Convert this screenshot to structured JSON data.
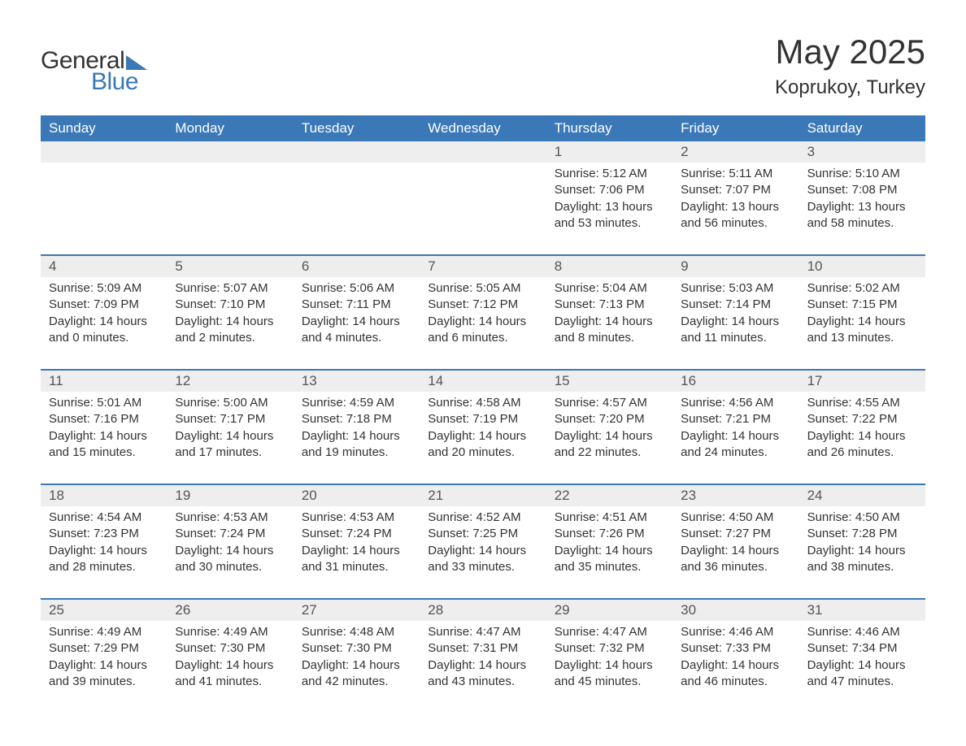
{
  "logo": {
    "general": "General",
    "blue": "Blue"
  },
  "title": "May 2025",
  "location": "Koprukoy, Turkey",
  "colors": {
    "header_bg": "#3b78b8",
    "header_text": "#ffffff",
    "daynum_bg": "#eeeeee",
    "body_text": "#333333",
    "accent": "#3b78b8"
  },
  "day_headers": [
    "Sunday",
    "Monday",
    "Tuesday",
    "Wednesday",
    "Thursday",
    "Friday",
    "Saturday"
  ],
  "weeks": [
    [
      null,
      null,
      null,
      null,
      {
        "n": "1",
        "sunrise": "5:12 AM",
        "sunset": "7:06 PM",
        "daylight": "13 hours and 53 minutes."
      },
      {
        "n": "2",
        "sunrise": "5:11 AM",
        "sunset": "7:07 PM",
        "daylight": "13 hours and 56 minutes."
      },
      {
        "n": "3",
        "sunrise": "5:10 AM",
        "sunset": "7:08 PM",
        "daylight": "13 hours and 58 minutes."
      }
    ],
    [
      {
        "n": "4",
        "sunrise": "5:09 AM",
        "sunset": "7:09 PM",
        "daylight": "14 hours and 0 minutes."
      },
      {
        "n": "5",
        "sunrise": "5:07 AM",
        "sunset": "7:10 PM",
        "daylight": "14 hours and 2 minutes."
      },
      {
        "n": "6",
        "sunrise": "5:06 AM",
        "sunset": "7:11 PM",
        "daylight": "14 hours and 4 minutes."
      },
      {
        "n": "7",
        "sunrise": "5:05 AM",
        "sunset": "7:12 PM",
        "daylight": "14 hours and 6 minutes."
      },
      {
        "n": "8",
        "sunrise": "5:04 AM",
        "sunset": "7:13 PM",
        "daylight": "14 hours and 8 minutes."
      },
      {
        "n": "9",
        "sunrise": "5:03 AM",
        "sunset": "7:14 PM",
        "daylight": "14 hours and 11 minutes."
      },
      {
        "n": "10",
        "sunrise": "5:02 AM",
        "sunset": "7:15 PM",
        "daylight": "14 hours and 13 minutes."
      }
    ],
    [
      {
        "n": "11",
        "sunrise": "5:01 AM",
        "sunset": "7:16 PM",
        "daylight": "14 hours and 15 minutes."
      },
      {
        "n": "12",
        "sunrise": "5:00 AM",
        "sunset": "7:17 PM",
        "daylight": "14 hours and 17 minutes."
      },
      {
        "n": "13",
        "sunrise": "4:59 AM",
        "sunset": "7:18 PM",
        "daylight": "14 hours and 19 minutes."
      },
      {
        "n": "14",
        "sunrise": "4:58 AM",
        "sunset": "7:19 PM",
        "daylight": "14 hours and 20 minutes."
      },
      {
        "n": "15",
        "sunrise": "4:57 AM",
        "sunset": "7:20 PM",
        "daylight": "14 hours and 22 minutes."
      },
      {
        "n": "16",
        "sunrise": "4:56 AM",
        "sunset": "7:21 PM",
        "daylight": "14 hours and 24 minutes."
      },
      {
        "n": "17",
        "sunrise": "4:55 AM",
        "sunset": "7:22 PM",
        "daylight": "14 hours and 26 minutes."
      }
    ],
    [
      {
        "n": "18",
        "sunrise": "4:54 AM",
        "sunset": "7:23 PM",
        "daylight": "14 hours and 28 minutes."
      },
      {
        "n": "19",
        "sunrise": "4:53 AM",
        "sunset": "7:24 PM",
        "daylight": "14 hours and 30 minutes."
      },
      {
        "n": "20",
        "sunrise": "4:53 AM",
        "sunset": "7:24 PM",
        "daylight": "14 hours and 31 minutes."
      },
      {
        "n": "21",
        "sunrise": "4:52 AM",
        "sunset": "7:25 PM",
        "daylight": "14 hours and 33 minutes."
      },
      {
        "n": "22",
        "sunrise": "4:51 AM",
        "sunset": "7:26 PM",
        "daylight": "14 hours and 35 minutes."
      },
      {
        "n": "23",
        "sunrise": "4:50 AM",
        "sunset": "7:27 PM",
        "daylight": "14 hours and 36 minutes."
      },
      {
        "n": "24",
        "sunrise": "4:50 AM",
        "sunset": "7:28 PM",
        "daylight": "14 hours and 38 minutes."
      }
    ],
    [
      {
        "n": "25",
        "sunrise": "4:49 AM",
        "sunset": "7:29 PM",
        "daylight": "14 hours and 39 minutes."
      },
      {
        "n": "26",
        "sunrise": "4:49 AM",
        "sunset": "7:30 PM",
        "daylight": "14 hours and 41 minutes."
      },
      {
        "n": "27",
        "sunrise": "4:48 AM",
        "sunset": "7:30 PM",
        "daylight": "14 hours and 42 minutes."
      },
      {
        "n": "28",
        "sunrise": "4:47 AM",
        "sunset": "7:31 PM",
        "daylight": "14 hours and 43 minutes."
      },
      {
        "n": "29",
        "sunrise": "4:47 AM",
        "sunset": "7:32 PM",
        "daylight": "14 hours and 45 minutes."
      },
      {
        "n": "30",
        "sunrise": "4:46 AM",
        "sunset": "7:33 PM",
        "daylight": "14 hours and 46 minutes."
      },
      {
        "n": "31",
        "sunrise": "4:46 AM",
        "sunset": "7:34 PM",
        "daylight": "14 hours and 47 minutes."
      }
    ]
  ],
  "labels": {
    "sunrise": "Sunrise:",
    "sunset": "Sunset:",
    "daylight": "Daylight:"
  }
}
